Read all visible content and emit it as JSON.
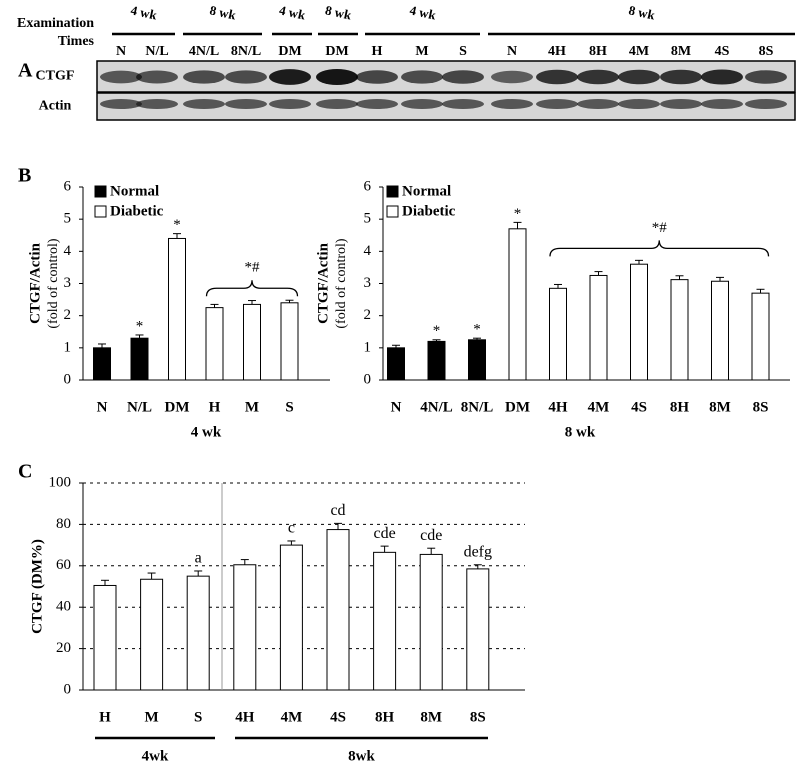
{
  "blot": {
    "panel_label": "A",
    "header": [
      "Examination",
      "Times"
    ],
    "groups": [
      "4 wk",
      "8 wk",
      "4 wk",
      "8 wk",
      "4 wk",
      "8 wk"
    ],
    "lanes": [
      "N",
      "N/L",
      "4N/L",
      "8N/L",
      "DM",
      "DM",
      "H",
      "M",
      "S",
      "N",
      "4H",
      "8H",
      "4M",
      "8M",
      "4S",
      "8S"
    ],
    "rows": [
      "CTGF",
      "Actin"
    ]
  },
  "chart_data": [
    {
      "type": "bar",
      "panel_label": "B",
      "y_label": "CTGF/Actin",
      "y_sublabel": "(fold of control)",
      "x_label": "4 wk",
      "categories": [
        "N",
        "N/L",
        "DM",
        "H",
        "M",
        "S"
      ],
      "series": [
        {
          "name": "Normal",
          "color": "#000000",
          "values": [
            1.0,
            1.3,
            null,
            null,
            null,
            null
          ],
          "errors": [
            0.12,
            0.1,
            null,
            null,
            null,
            null
          ]
        },
        {
          "name": "Diabetic",
          "color": "#ffffff",
          "values": [
            null,
            null,
            4.4,
            2.25,
            2.35,
            2.4
          ],
          "errors": [
            null,
            null,
            0.15,
            0.1,
            0.12,
            0.08
          ]
        }
      ],
      "significance": [
        null,
        "*",
        "*",
        null,
        null,
        null
      ],
      "bracket_label": "*#",
      "ylim": [
        0,
        6
      ],
      "yticks": [
        0,
        1,
        2,
        3,
        4,
        5,
        6
      ],
      "legend": "upper left"
    },
    {
      "type": "bar",
      "x_label": "8 wk",
      "y_label": "CTGF/Actin",
      "y_sublabel": "(fold of control)",
      "categories": [
        "N",
        "4N/L",
        "8N/L",
        "DM",
        "4H",
        "4M",
        "4S",
        "8H",
        "8M",
        "8S"
      ],
      "series": [
        {
          "name": "Normal",
          "color": "#000000",
          "values": [
            1.0,
            1.2,
            1.25,
            null,
            null,
            null,
            null,
            null,
            null,
            null
          ],
          "errors": [
            0.08,
            0.05,
            0.05,
            null,
            null,
            null,
            null,
            null,
            null,
            null
          ]
        },
        {
          "name": "Diabetic",
          "color": "#ffffff",
          "values": [
            null,
            null,
            null,
            4.7,
            2.85,
            3.25,
            3.6,
            3.12,
            3.07,
            2.7
          ],
          "errors": [
            null,
            null,
            null,
            0.2,
            0.12,
            0.12,
            0.12,
            0.12,
            0.12,
            0.12
          ]
        }
      ],
      "significance": [
        null,
        "*",
        "*",
        "*",
        null,
        null,
        null,
        null,
        null,
        null
      ],
      "bracket_label": "*#",
      "ylim": [
        0,
        6
      ],
      "yticks": [
        0,
        1,
        2,
        3,
        4,
        5,
        6
      ],
      "legend": "upper left"
    },
    {
      "type": "bar",
      "panel_label": "C",
      "y_label": "CTGF (DM%)",
      "categories": [
        "H",
        "M",
        "S",
        "4H",
        "4M",
        "4S",
        "8H",
        "8M",
        "8S"
      ],
      "series": [
        {
          "color": "#ffffff",
          "values": [
            50.5,
            53.5,
            55,
            60.5,
            70,
            77.5,
            66.5,
            65.5,
            58.5
          ],
          "errors": [
            2.5,
            3,
            2.5,
            2.5,
            2,
            3,
            3,
            3,
            2
          ]
        }
      ],
      "letters": [
        null,
        null,
        "a",
        null,
        "c",
        "cd",
        "cde",
        "cde",
        "defg"
      ],
      "groups": [
        "4wk",
        "8wk"
      ],
      "ylim": [
        0,
        100
      ],
      "yticks": [
        0,
        20,
        40,
        60,
        80,
        100
      ],
      "grid": true
    }
  ]
}
